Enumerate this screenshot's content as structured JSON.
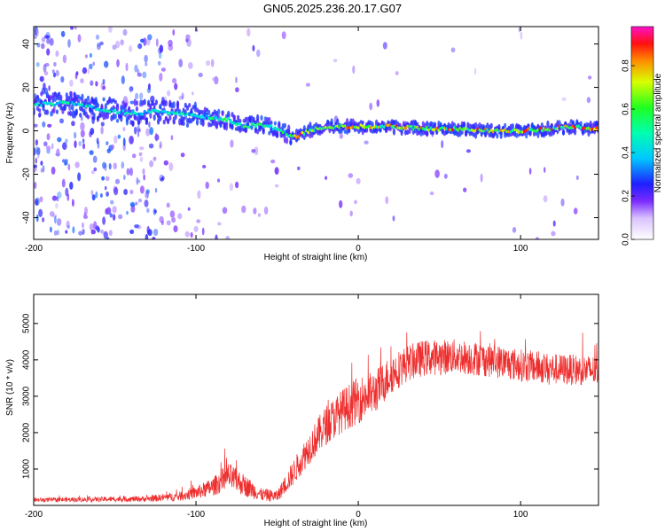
{
  "title": "GN05.2025.236.20.17.G07",
  "chart_data": [
    {
      "type": "heatmap",
      "xlabel": "Height of straight line (km)",
      "ylabel": "Frequency (Hz)",
      "xlim": [
        -200,
        148
      ],
      "ylim": [
        -50,
        48
      ],
      "xticks": [
        -200,
        -100,
        0,
        100
      ],
      "yticks": [
        -40,
        -20,
        0,
        20,
        40
      ],
      "colorbar": {
        "label": "Normalized spectral amplitude",
        "range": [
          0,
          0.98
        ],
        "ticks": [
          "0.0",
          "0.2",
          "0.4",
          "0.6",
          "0.8"
        ],
        "tick_values": [
          0.0,
          0.2,
          0.4,
          0.6,
          0.8
        ]
      },
      "ridge": {
        "name": "dominant frequency track",
        "x": [
          -200,
          -180,
          -160,
          -140,
          -120,
          -100,
          -80,
          -70,
          -60,
          -50,
          -40,
          -30,
          -20,
          0,
          20,
          40,
          60,
          80,
          100,
          120,
          130,
          148
        ],
        "y": [
          12,
          13,
          10,
          8,
          9,
          7,
          5,
          2,
          3,
          1,
          -3,
          0,
          2,
          2,
          2,
          1,
          1,
          0,
          0,
          1,
          2,
          1
        ],
        "peak_amplitude": 0.95
      }
    },
    {
      "type": "line",
      "xlabel": "Height of straight line (km)",
      "ylabel": "SNR (10 * v/v)",
      "xlim": [
        -200,
        148
      ],
      "ylim": [
        0,
        5800
      ],
      "xticks": [
        -200,
        -100,
        0,
        100
      ],
      "yticks": [
        1000,
        2000,
        3000,
        4000,
        5000
      ],
      "color": "#ee2d2d",
      "envelope": {
        "x": [
          -200,
          -150,
          -130,
          -110,
          -100,
          -90,
          -80,
          -70,
          -60,
          -50,
          -40,
          -30,
          -20,
          -10,
          0,
          10,
          20,
          30,
          40,
          60,
          80,
          100,
          120,
          148
        ],
        "y": [
          150,
          170,
          180,
          250,
          350,
          500,
          800,
          550,
          300,
          250,
          900,
          1600,
          2200,
          2600,
          2900,
          3100,
          3600,
          3900,
          4050,
          4100,
          4000,
          3850,
          3750,
          3700
        ],
        "noise": [
          60,
          70,
          80,
          130,
          180,
          250,
          380,
          300,
          180,
          160,
          350,
          450,
          550,
          600,
          650,
          600,
          550,
          500,
          500,
          480,
          470,
          450,
          430,
          420
        ]
      }
    }
  ]
}
